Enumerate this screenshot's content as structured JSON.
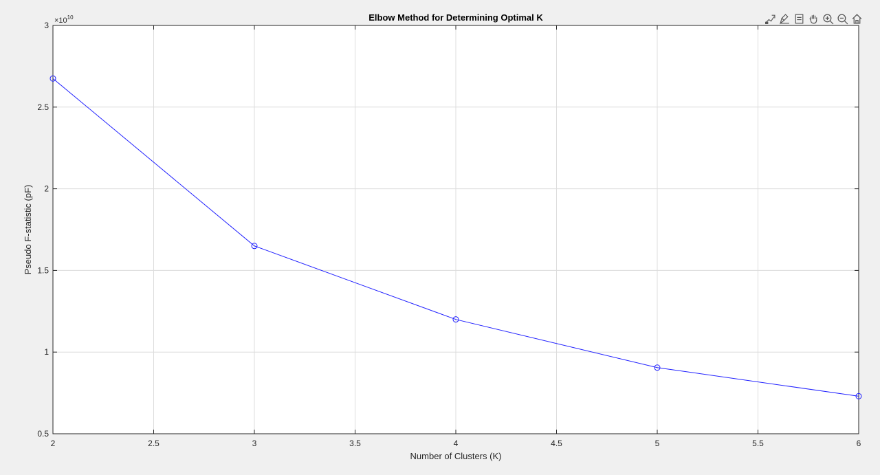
{
  "toolbar": {
    "items": [
      "data-tips-icon",
      "brush-icon",
      "restore-view-icon",
      "pan-icon",
      "zoom-in-icon",
      "zoom-out-icon",
      "home-icon"
    ]
  },
  "colors": {
    "line": "#2020ff",
    "axes": "#262626",
    "grid": "#dcdcdc",
    "figure_bg": "#f0f0f0",
    "axes_bg": "#ffffff"
  },
  "chart_data": {
    "type": "line",
    "title": "Elbow Method for Determining Optimal K",
    "xlabel": "Number of Clusters (K)",
    "ylabel": "Pseudo F-statistic (pF)",
    "y_exponent_label": "×10",
    "y_exponent": "10",
    "xlim": [
      2,
      6
    ],
    "ylim": [
      0.5,
      3
    ],
    "xticks": [
      "2",
      "2.5",
      "3",
      "3.5",
      "4",
      "4.5",
      "5",
      "5.5",
      "6"
    ],
    "yticks": [
      "0.5",
      "1",
      "1.5",
      "2",
      "2.5",
      "3"
    ],
    "grid": true,
    "marker": "circle",
    "series": [
      {
        "x": [
          2,
          3,
          4,
          5,
          6
        ],
        "values": [
          2.675,
          1.65,
          1.2,
          0.905,
          0.73
        ]
      }
    ]
  }
}
